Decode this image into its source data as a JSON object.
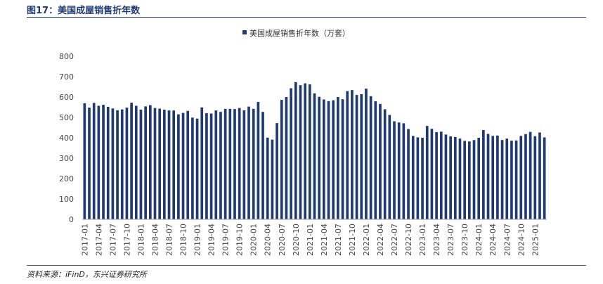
{
  "figure": {
    "title": "图17：美国成屋销售折年数",
    "source": "资料来源：iFinD，东兴证券研究所"
  },
  "chart_data": {
    "type": "bar",
    "color": "#1f3a73",
    "legend": {
      "label": "美国成屋销售折年数（万套）",
      "position": "top-center"
    },
    "ylim": [
      0,
      800
    ],
    "yticks": [
      "0",
      "100",
      "200",
      "300",
      "400",
      "500",
      "600",
      "700",
      "800"
    ],
    "xtick_labels": [
      "2017-01",
      "2017-04",
      "2017-07",
      "2017-10",
      "2018-01",
      "2018-04",
      "2018-07",
      "2018-10",
      "2019-01",
      "2019-04",
      "2019-07",
      "2019-10",
      "2020-01",
      "2020-04",
      "2020-07",
      "2020-10",
      "2021-01",
      "2021-04",
      "2021-07",
      "2021-10",
      "2022-01",
      "2022-04",
      "2022-07",
      "2022-10",
      "2023-01",
      "2023-04",
      "2023-07",
      "2023-10",
      "2024-01",
      "2024-04",
      "2024-07",
      "2024-10",
      "2025-01"
    ],
    "grid": false,
    "categories": [
      "2017-01",
      "2017-02",
      "2017-03",
      "2017-04",
      "2017-05",
      "2017-06",
      "2017-07",
      "2017-08",
      "2017-09",
      "2017-10",
      "2017-11",
      "2017-12",
      "2018-01",
      "2018-02",
      "2018-03",
      "2018-04",
      "2018-05",
      "2018-06",
      "2018-07",
      "2018-08",
      "2018-09",
      "2018-10",
      "2018-11",
      "2018-12",
      "2019-01",
      "2019-02",
      "2019-03",
      "2019-04",
      "2019-05",
      "2019-06",
      "2019-07",
      "2019-08",
      "2019-09",
      "2019-10",
      "2019-11",
      "2019-12",
      "2020-01",
      "2020-02",
      "2020-03",
      "2020-04",
      "2020-05",
      "2020-06",
      "2020-07",
      "2020-08",
      "2020-09",
      "2020-10",
      "2020-11",
      "2020-12",
      "2021-01",
      "2021-02",
      "2021-03",
      "2021-04",
      "2021-05",
      "2021-06",
      "2021-07",
      "2021-08",
      "2021-09",
      "2021-10",
      "2021-11",
      "2021-12",
      "2022-01",
      "2022-02",
      "2022-03",
      "2022-04",
      "2022-05",
      "2022-06",
      "2022-07",
      "2022-08",
      "2022-09",
      "2022-10",
      "2022-11",
      "2022-12",
      "2023-01",
      "2023-02",
      "2023-03",
      "2023-04",
      "2023-05",
      "2023-06",
      "2023-07",
      "2023-08",
      "2023-09",
      "2023-10",
      "2023-11",
      "2023-12",
      "2024-01",
      "2024-02",
      "2024-03",
      "2024-04",
      "2024-05",
      "2024-06",
      "2024-07",
      "2024-08",
      "2024-09",
      "2024-10",
      "2024-11",
      "2024-12",
      "2025-01",
      "2025-02",
      "2025-03"
    ],
    "values": [
      569,
      548,
      571,
      557,
      562,
      552,
      544,
      535,
      539,
      548,
      572,
      557,
      538,
      554,
      560,
      546,
      543,
      538,
      534,
      534,
      515,
      522,
      532,
      499,
      494,
      549,
      521,
      519,
      534,
      527,
      542,
      542,
      541,
      546,
      535,
      553,
      542,
      576,
      527,
      401,
      391,
      472,
      586,
      600,
      643,
      673,
      658,
      667,
      662,
      618,
      601,
      588,
      580,
      584,
      600,
      589,
      629,
      634,
      610,
      614,
      641,
      604,
      579,
      566,
      540,
      512,
      481,
      475,
      471,
      443,
      409,
      402,
      400,
      458,
      444,
      428,
      430,
      416,
      407,
      404,
      396,
      385,
      382,
      389,
      400,
      438,
      419,
      409,
      411,
      389,
      396,
      386,
      387,
      409,
      418,
      429,
      408,
      426,
      402
    ]
  }
}
